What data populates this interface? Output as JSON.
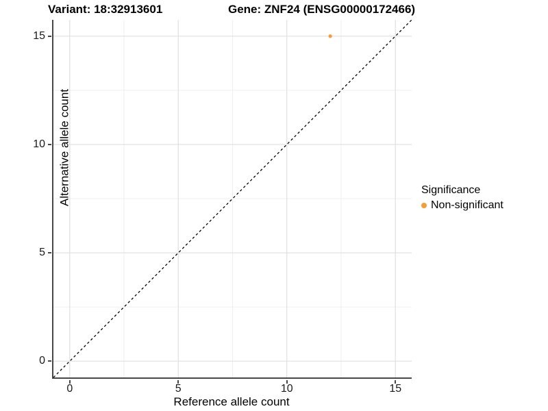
{
  "titles": {
    "variant": "Variant: 18:32913601",
    "gene": "Gene: ZNF24 (ENSG00000172466)"
  },
  "colors": {
    "non_significant": "#F89B30",
    "grid_major": "#E2E2E2",
    "grid_minor": "#EFEFEF",
    "axis_line": "#464646",
    "identity_line": "#000000"
  },
  "chart_data": {
    "type": "scatter",
    "title": "Variant: 18:32913601   Gene: ZNF24 (ENSG00000172466)",
    "xlabel": "Reference allele count",
    "ylabel": "Alternative allele count",
    "x_ticks": [
      0,
      5,
      10,
      15
    ],
    "y_ticks": [
      0,
      5,
      10,
      15
    ],
    "x_minor_ticks": [
      2.5,
      7.5,
      12.5
    ],
    "y_minor_ticks": [
      2.5,
      7.5,
      12.5
    ],
    "xlim": [
      -0.75,
      15.75
    ],
    "ylim": [
      -0.75,
      15.75
    ],
    "grid": true,
    "identity_line": {
      "shown": true,
      "style": "dashed",
      "from": [
        -0.75,
        -0.75
      ],
      "to": [
        15.75,
        15.75
      ]
    },
    "series": [
      {
        "name": "Non-significant",
        "color": "#F89B30",
        "points": [
          {
            "x": 12,
            "y": 15
          }
        ]
      }
    ],
    "legend": {
      "title": "Significance",
      "position": "right",
      "items": [
        {
          "label": "Non-significant",
          "color": "#F89B30"
        }
      ]
    }
  }
}
